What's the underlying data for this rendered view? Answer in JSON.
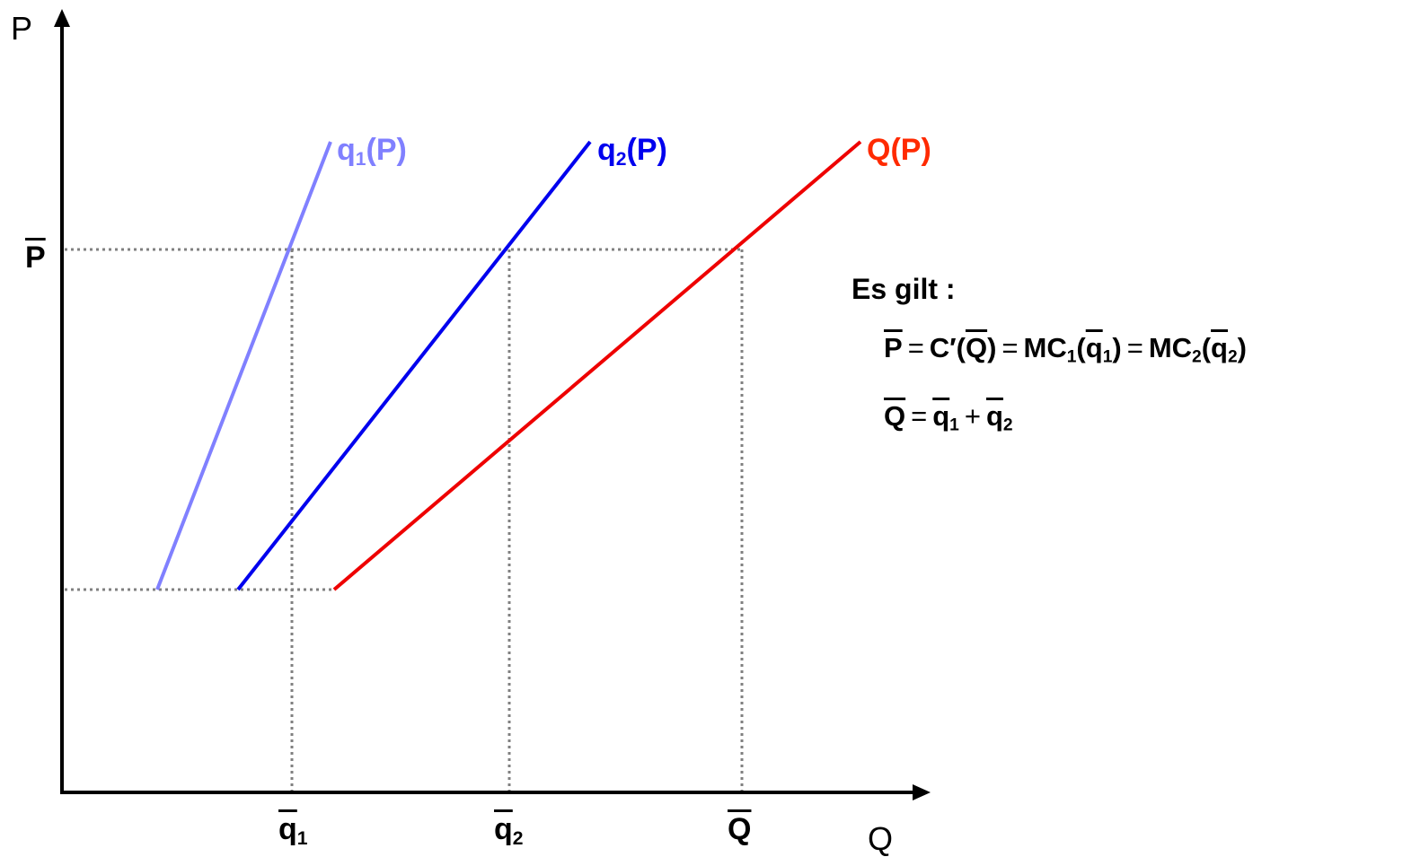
{
  "axes": {
    "y_label": "P",
    "x_label": "Q"
  },
  "ticks": {
    "p_bar": "P",
    "q1_bar": "q",
    "q1_sub": "1",
    "q2_bar": "q",
    "q2_sub": "2",
    "Q_bar": "Q"
  },
  "curves": {
    "q1": {
      "base": "q",
      "sub": "1",
      "arg": "(P)",
      "color": "#8080ff"
    },
    "q2": {
      "base": "q",
      "sub": "2",
      "arg": "(P)",
      "color": "#0000ee"
    },
    "Q": {
      "base": "Q",
      "arg": "(P)",
      "color": "#ff2a00",
      "line_color": "#ee0000"
    }
  },
  "equations": {
    "heading": "Es gilt :",
    "line1": {
      "P": "P",
      "eq": "=",
      "C": "C′(",
      "Q": "Q",
      "close": ")",
      "MC": "MC",
      "sub1": "1",
      "sub2": "2",
      "open": "(",
      "q": "q"
    },
    "line2": {
      "Q": "Q",
      "eq": "=",
      "q": "q",
      "sub1": "1",
      "plus": "+",
      "sub2": "2"
    }
  }
}
